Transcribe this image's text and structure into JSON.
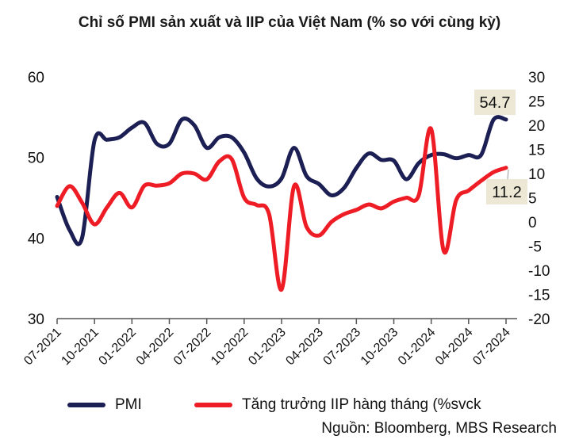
{
  "chart_data": {
    "type": "line",
    "title": "Chỉ số PMI sản xuất và IIP của Việt Nam (% so với cùng kỳ)",
    "x_tick_labels": [
      "07-2021",
      "10-2021",
      "01-2022",
      "04-2022",
      "07-2022",
      "10-2022",
      "01-2023",
      "04-2023",
      "07-2023",
      "10-2023",
      "01-2024",
      "04-2024",
      "07-2024"
    ],
    "months": 37,
    "left_axis": {
      "ylim": [
        30,
        60
      ],
      "ticks": [
        "30",
        "40",
        "50",
        "60"
      ]
    },
    "right_axis": {
      "ylim": [
        -20,
        30
      ],
      "ticks": [
        "-20",
        "-15",
        "-10",
        "-5",
        "0",
        "5",
        "10",
        "15",
        "20",
        "25",
        "30"
      ]
    },
    "series": [
      {
        "name": "PMI",
        "axis": "left",
        "color": "#1c1f54",
        "values": [
          45.1,
          41,
          40,
          52.1,
          52.2,
          52.5,
          53.7,
          54.3,
          51.7,
          51.7,
          54.7,
          54,
          51.2,
          52.5,
          52.5,
          50.6,
          47.4,
          46.4,
          47.4,
          51.2,
          47.7,
          46.7,
          45.3,
          46.2,
          48.7,
          50.5,
          49.7,
          49.6,
          47.3,
          49.3,
          50.3,
          50.4,
          49.9,
          50.3,
          50.3,
          54.7,
          54.7
        ]
      },
      {
        "name": "Tăng trưởng IIP hàng tháng (%svck",
        "axis": "right",
        "color": "#ee1c25",
        "values": [
          3.3,
          7.4,
          4,
          -0.5,
          3,
          6,
          3,
          7.5,
          7.5,
          8,
          10,
          10,
          8.8,
          12.5,
          13,
          5,
          3.5,
          1.6,
          -14,
          7.4,
          -1,
          -2.8,
          0,
          1.6,
          2.5,
          3.6,
          2.8,
          4.2,
          5,
          5.5,
          19.2,
          -6,
          4.5,
          6.5,
          8.5,
          10.3,
          11.2
        ]
      }
    ],
    "annotations": [
      {
        "text": "54.7",
        "series": "PMI"
      },
      {
        "text": "11.2",
        "series": "Tăng trưởng IIP hàng tháng (%svck"
      }
    ],
    "annotation_bg": "#ece8d5",
    "legend_position": "bottom",
    "source": "Nguồn: Bloomberg, MBS Research"
  }
}
